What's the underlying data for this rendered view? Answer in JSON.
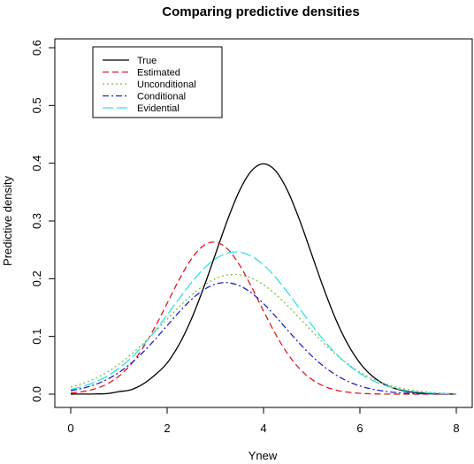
{
  "chart_data": {
    "type": "line",
    "title": "Comparing predictive densities",
    "xlabel": "Ynew",
    "ylabel": "Predictive density",
    "xlim": [
      0,
      8
    ],
    "ylim": [
      0,
      0.6
    ],
    "x_ticks": [
      "0",
      "2",
      "4",
      "6",
      "8"
    ],
    "y_ticks": [
      "0.0",
      "0.1",
      "0.2",
      "0.3",
      "0.4",
      "0.5",
      "0.6"
    ],
    "grid": false,
    "legend_position": "top-left",
    "x": [
      0,
      0.25,
      0.5,
      0.75,
      1,
      1.25,
      1.5,
      1.75,
      2,
      2.25,
      2.5,
      2.75,
      3,
      3.25,
      3.5,
      3.75,
      4,
      4.25,
      4.5,
      4.75,
      5,
      5.25,
      5.5,
      5.75,
      6,
      6.25,
      6.5,
      6.75,
      7,
      7.25,
      7.5,
      7.75,
      8
    ],
    "series": [
      {
        "name": "True",
        "color": "#000000",
        "dash": "solid",
        "values": [
          0.0001,
          0.0002,
          0.0004,
          0.001,
          0.0044,
          0.0077,
          0.0175,
          0.0335,
          0.054,
          0.0863,
          0.1295,
          0.1827,
          0.242,
          0.3011,
          0.3521,
          0.3867,
          0.3989,
          0.3867,
          0.3521,
          0.3011,
          0.242,
          0.1827,
          0.1295,
          0.0863,
          0.054,
          0.0317,
          0.0175,
          0.0091,
          0.0044,
          0.002,
          0.0009,
          0.0004,
          0.0001
        ]
      },
      {
        "name": "Estimated",
        "color": "#e8161a",
        "dash": "7,4",
        "values": [
          0.002,
          0.0045,
          0.0092,
          0.0175,
          0.0312,
          0.0519,
          0.0805,
          0.1165,
          0.1573,
          0.1985,
          0.2338,
          0.2569,
          0.2633,
          0.2517,
          0.224,
          0.186,
          0.144,
          0.104,
          0.07,
          0.044,
          0.0257,
          0.014,
          0.0071,
          0.0034,
          0.0015,
          0.0006,
          0.0002,
          0.0001,
          0.0,
          0.0,
          0.0,
          0.0,
          0.0
        ]
      },
      {
        "name": "Unconditional",
        "color": "#7cc242",
        "dash": "2,3",
        "values": [
          0.0124,
          0.0186,
          0.0271,
          0.0381,
          0.0519,
          0.0685,
          0.0874,
          0.1082,
          0.1299,
          0.1513,
          0.1711,
          0.1877,
          0.1998,
          0.2064,
          0.2068,
          0.201,
          0.1894,
          0.173,
          0.1532,
          0.1315,
          0.1094,
          0.0882,
          0.0689,
          0.0521,
          0.0382,
          0.0271,
          0.0186,
          0.0124,
          0.008,
          0.005,
          0.003,
          0.0018,
          0.001
        ]
      },
      {
        "name": "Conditional",
        "color": "#1a24c8",
        "dash": "7,3,2,3",
        "values": [
          0.0062,
          0.0103,
          0.0165,
          0.0254,
          0.0376,
          0.0534,
          0.0727,
          0.0949,
          0.1187,
          0.1424,
          0.1636,
          0.1803,
          0.1906,
          0.1932,
          0.1879,
          0.1753,
          0.1569,
          0.1347,
          0.1109,
          0.0876,
          0.0663,
          0.0481,
          0.0335,
          0.0223,
          0.0143,
          0.0088,
          0.0052,
          0.0029,
          0.0016,
          0.0008,
          0.0004,
          0.0002,
          0.0001
        ]
      },
      {
        "name": "Evidential",
        "color": "#33e0e6",
        "dash": "12,4",
        "values": [
          0.0084,
          0.0134,
          0.0207,
          0.031,
          0.0449,
          0.0627,
          0.0844,
          0.1095,
          0.1371,
          0.1655,
          0.1927,
          0.2163,
          0.2341,
          0.2443,
          0.246,
          0.2389,
          0.2239,
          0.2023,
          0.1762,
          0.1481,
          0.1199,
          0.0936,
          0.0705,
          0.0512,
          0.0358,
          0.0242,
          0.0157,
          0.0098,
          0.0059,
          0.0034,
          0.0019,
          0.001,
          0.0005
        ]
      }
    ]
  }
}
